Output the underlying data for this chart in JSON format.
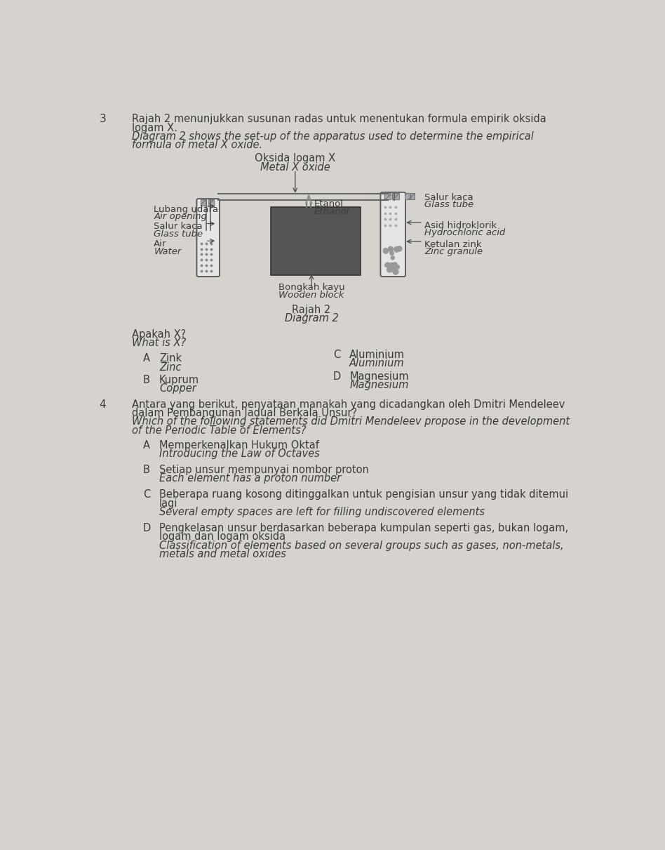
{
  "bg_color": "#d6d3ce",
  "text_color": "#3a3a3a",
  "q3_number": "3",
  "q3_line1_malay": "Rajah 2 menunjukkan susunan radas untuk menentukan formula empirik oksida",
  "q3_line2_malay": "logam X.",
  "q3_line1_english": "Diagram 2 shows the set-up of the apparatus used to determine the empirical",
  "q3_line2_english": "formula of metal X oxide.",
  "diagram_title_malay": "Oksida logam X",
  "diagram_title_english": "Metal X oxide",
  "label_lubang_udara": "Lubang udara",
  "label_air_opening": "Air opening",
  "label_salur_kaca1": "Salur kaca",
  "label_glass_tube1": "Glass tube",
  "label_air": "Air",
  "label_water": "Water",
  "label_etanol": "Etanol",
  "label_ethanol": "Ethanol",
  "label_salur_kaca2": "Salur kaca",
  "label_glass_tube2": "Glass tube",
  "label_asid": "Asid hidroklorik",
  "label_hydrochloric": "Hydrochloric acid",
  "label_ketulan": "Ketulan zink",
  "label_zinc_granule": "Zinc granule",
  "label_bongkah": "Bongkah kayu",
  "label_wooden_block": "Wooden block",
  "rajah2": "Rajah 2",
  "diagram2": "Diagram 2",
  "q3_question_malay": "Apakah X?",
  "q3_question_english": "What is X?",
  "q3_A_malay": "Zink",
  "q3_A_english": "Zinc",
  "q3_B_malay": "Kuprum",
  "q3_B_english": "Copper",
  "q3_C_malay": "Aluminium",
  "q3_C_english": "Aluminium",
  "q3_D_malay": "Magnesium",
  "q3_D_english": "Magnesium",
  "q4_number": "4",
  "q4_line1_malay": "Antara yang berikut, penyataan manakah yang dicadangkan oleh Dmitri Mendeleev",
  "q4_line2_malay": "dalam Pembangunan Jadual Berkala Unsur?",
  "q4_line1_english": "Which of the following statements did Dmitri Mendeleev propose in the development",
  "q4_line2_english": "of the Periodic Table of Elements?",
  "q4_A_malay": "Memperkenalkan Hukum Oktaf",
  "q4_A_english": "Introducing the Law of Octaves",
  "q4_B_malay": "Setiap unsur mempunyai nombor proton",
  "q4_B_english": "Each element has a proton number",
  "q4_C_line1_malay": "Beberapa ruang kosong ditinggalkan untuk pengisian unsur yang tidak ditemui",
  "q4_C_line2_malay": "lagi",
  "q4_C_english": "Several empty spaces are left for filling undiscovered elements",
  "q4_D_line1_malay": "Pengkelasan unsur berdasarkan beberapa kumpulan seperti gas, bukan logam,",
  "q4_D_line2_malay": "logam dan logam oksida",
  "q4_D_line1_english": "Classification of elements based on several groups such as gases, non-metals,",
  "q4_D_line2_english": "metals and metal oxides"
}
